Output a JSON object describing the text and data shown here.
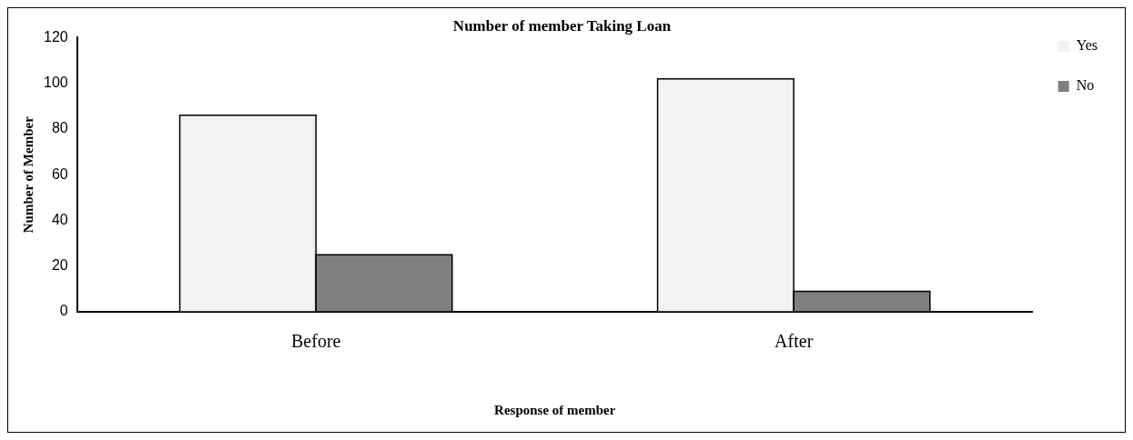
{
  "chart_data": {
    "type": "bar",
    "title": "Number of member Taking Loan",
    "xlabel": "Response of member",
    "ylabel": "Number of Member",
    "categories": [
      "Before",
      "After"
    ],
    "series": [
      {
        "name": "Yes",
        "color": "#f2f2f2",
        "values": [
          86,
          102
        ]
      },
      {
        "name": "No",
        "color": "#7f7f7f",
        "values": [
          25,
          9
        ]
      }
    ],
    "ylim": [
      0,
      120
    ],
    "yticks": [
      0,
      20,
      40,
      60,
      80,
      100,
      120
    ],
    "grid": false,
    "legend": "right"
  }
}
